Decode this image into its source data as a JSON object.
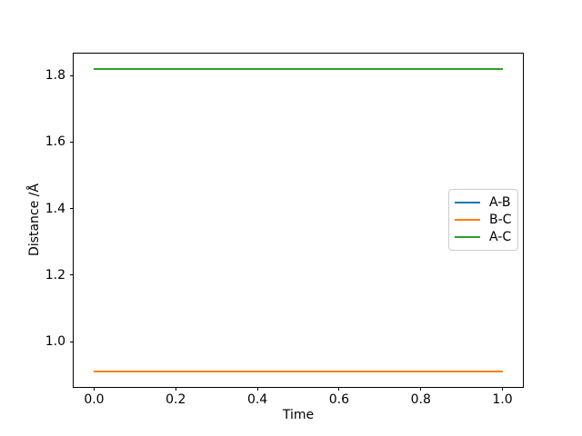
{
  "figure": {
    "background": "#ffffff",
    "spine_color": "#000000",
    "text_color": "#000000"
  },
  "chart_data": {
    "type": "line",
    "title": "",
    "xlabel": "Time",
    "ylabel": "Distance /Å",
    "xlim": [
      -0.05,
      1.05
    ],
    "ylim": [
      0.8645,
      1.8655
    ],
    "grid": false,
    "x_ticks": [
      {
        "value": 0.0,
        "label": "0.0"
      },
      {
        "value": 0.2,
        "label": "0.2"
      },
      {
        "value": 0.4,
        "label": "0.4"
      },
      {
        "value": 0.6,
        "label": "0.6"
      },
      {
        "value": 0.8,
        "label": "0.8"
      },
      {
        "value": 1.0,
        "label": "1.0"
      }
    ],
    "y_ticks": [
      {
        "value": 1.0,
        "label": "1.0"
      },
      {
        "value": 1.2,
        "label": "1.2"
      },
      {
        "value": 1.4,
        "label": "1.4"
      },
      {
        "value": 1.6,
        "label": "1.6"
      },
      {
        "value": 1.8,
        "label": "1.8"
      }
    ],
    "series": [
      {
        "name": "A-B",
        "color": "#1f77b4",
        "x": [
          0.0,
          1.0
        ],
        "y": [
          0.91,
          0.91
        ],
        "note": "hidden beneath B-C line"
      },
      {
        "name": "B-C",
        "color": "#ff7f0e",
        "x": [
          0.0,
          1.0
        ],
        "y": [
          0.91,
          0.91
        ]
      },
      {
        "name": "A-C",
        "color": "#2ca02c",
        "x": [
          0.0,
          1.0
        ],
        "y": [
          1.82,
          1.82
        ]
      }
    ],
    "legend": {
      "position": "center right",
      "entries": [
        {
          "label": "A-B",
          "color": "#1f77b4"
        },
        {
          "label": "B-C",
          "color": "#ff7f0e"
        },
        {
          "label": "A-C",
          "color": "#2ca02c"
        }
      ]
    }
  }
}
